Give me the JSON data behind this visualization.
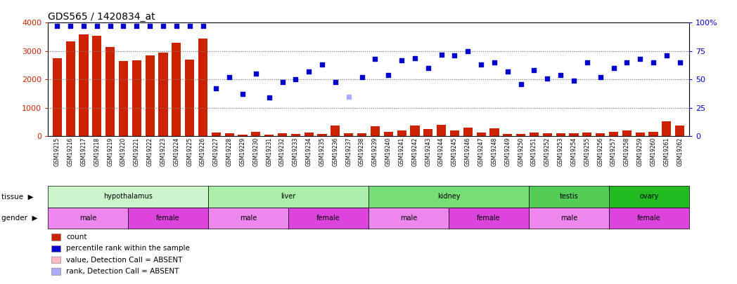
{
  "title": "GDS565 / 1420834_at",
  "samples": [
    "GSM19215",
    "GSM19216",
    "GSM19217",
    "GSM19218",
    "GSM19219",
    "GSM19220",
    "GSM19221",
    "GSM19222",
    "GSM19223",
    "GSM19224",
    "GSM19225",
    "GSM19226",
    "GSM19227",
    "GSM19228",
    "GSM19229",
    "GSM19230",
    "GSM19231",
    "GSM19232",
    "GSM19233",
    "GSM19234",
    "GSM19235",
    "GSM19236",
    "GSM19237",
    "GSM19238",
    "GSM19239",
    "GSM19240",
    "GSM19241",
    "GSM19242",
    "GSM19243",
    "GSM19244",
    "GSM19245",
    "GSM19246",
    "GSM19247",
    "GSM19248",
    "GSM19249",
    "GSM19250",
    "GSM19251",
    "GSM19252",
    "GSM19253",
    "GSM19254",
    "GSM19255",
    "GSM19256",
    "GSM19257",
    "GSM19258",
    "GSM19259",
    "GSM19260",
    "GSM19261",
    "GSM19262"
  ],
  "bar_values": [
    2750,
    3350,
    3600,
    3550,
    3150,
    2650,
    2670,
    2850,
    2950,
    3300,
    2700,
    3450,
    130,
    100,
    60,
    150,
    50,
    100,
    80,
    130,
    90,
    380,
    120,
    110,
    350,
    150,
    200,
    380,
    250,
    400,
    200,
    300,
    130,
    270,
    80,
    80,
    140,
    100,
    110,
    100,
    130,
    120,
    150,
    200,
    130,
    150,
    540,
    390
  ],
  "bar_absent": [
    false,
    false,
    false,
    false,
    false,
    false,
    false,
    false,
    false,
    false,
    false,
    false,
    false,
    false,
    false,
    false,
    false,
    false,
    false,
    false,
    false,
    false,
    false,
    false,
    false,
    false,
    false,
    false,
    false,
    false,
    false,
    false,
    false,
    false,
    false,
    false,
    false,
    false,
    false,
    false,
    false,
    false,
    false,
    false,
    false,
    false,
    false,
    false
  ],
  "rank_values": [
    97,
    97,
    97,
    97,
    97,
    97,
    97,
    97,
    97,
    97,
    97,
    97,
    42,
    52,
    37,
    55,
    34,
    48,
    50,
    57,
    63,
    48,
    35,
    52,
    68,
    54,
    67,
    69,
    60,
    72,
    71,
    75,
    63,
    65,
    57,
    46,
    58,
    51,
    54,
    49,
    65,
    52,
    60,
    65,
    68,
    65,
    71,
    65
  ],
  "rank_absent": [
    false,
    false,
    false,
    false,
    false,
    false,
    false,
    false,
    false,
    false,
    false,
    false,
    false,
    false,
    false,
    false,
    false,
    false,
    false,
    false,
    false,
    false,
    true,
    false,
    false,
    false,
    false,
    false,
    false,
    false,
    false,
    false,
    false,
    false,
    false,
    false,
    false,
    false,
    false,
    false,
    false,
    false,
    false,
    false,
    false,
    false,
    false,
    false
  ],
  "bar_color_present": "#cc2200",
  "bar_color_absent": "#ffbbbb",
  "dot_color_present": "#0000cc",
  "dot_color_absent": "#aaaaff",
  "ylim_left": [
    0,
    4000
  ],
  "ylim_right": [
    0,
    100
  ],
  "yticks_left": [
    0,
    1000,
    2000,
    3000,
    4000
  ],
  "yticks_right": [
    0,
    25,
    50,
    75,
    100
  ],
  "ytick_labels_right": [
    "0",
    "25",
    "50",
    "75",
    "100%"
  ],
  "tissue_groups": [
    {
      "label": "hypothalamus",
      "start": 0,
      "end": 11,
      "color": "#ccf5cc"
    },
    {
      "label": "liver",
      "start": 12,
      "end": 23,
      "color": "#aaeeaa"
    },
    {
      "label": "kidney",
      "start": 24,
      "end": 35,
      "color": "#77dd77"
    },
    {
      "label": "testis",
      "start": 36,
      "end": 41,
      "color": "#55cc55"
    },
    {
      "label": "ovary",
      "start": 42,
      "end": 47,
      "color": "#22bb22"
    }
  ],
  "gender_groups": [
    {
      "label": "male",
      "start": 0,
      "end": 5,
      "color": "#ee88ee"
    },
    {
      "label": "female",
      "start": 6,
      "end": 11,
      "color": "#dd44dd"
    },
    {
      "label": "male",
      "start": 12,
      "end": 17,
      "color": "#ee88ee"
    },
    {
      "label": "female",
      "start": 18,
      "end": 23,
      "color": "#dd44dd"
    },
    {
      "label": "male",
      "start": 24,
      "end": 29,
      "color": "#ee88ee"
    },
    {
      "label": "female",
      "start": 30,
      "end": 35,
      "color": "#dd44dd"
    },
    {
      "label": "male",
      "start": 36,
      "end": 41,
      "color": "#ee88ee"
    },
    {
      "label": "female",
      "start": 42,
      "end": 47,
      "color": "#dd44dd"
    }
  ],
  "legend_items": [
    {
      "label": "count",
      "color": "#cc2200"
    },
    {
      "label": "percentile rank within the sample",
      "color": "#0000cc"
    },
    {
      "label": "value, Detection Call = ABSENT",
      "color": "#ffbbbb"
    },
    {
      "label": "rank, Detection Call = ABSENT",
      "color": "#aaaaff"
    }
  ],
  "background_color": "#ffffff",
  "grid_color": "#888888",
  "title_color": "#000000",
  "left_axis_color": "#cc2200",
  "right_axis_color": "#0000cc"
}
